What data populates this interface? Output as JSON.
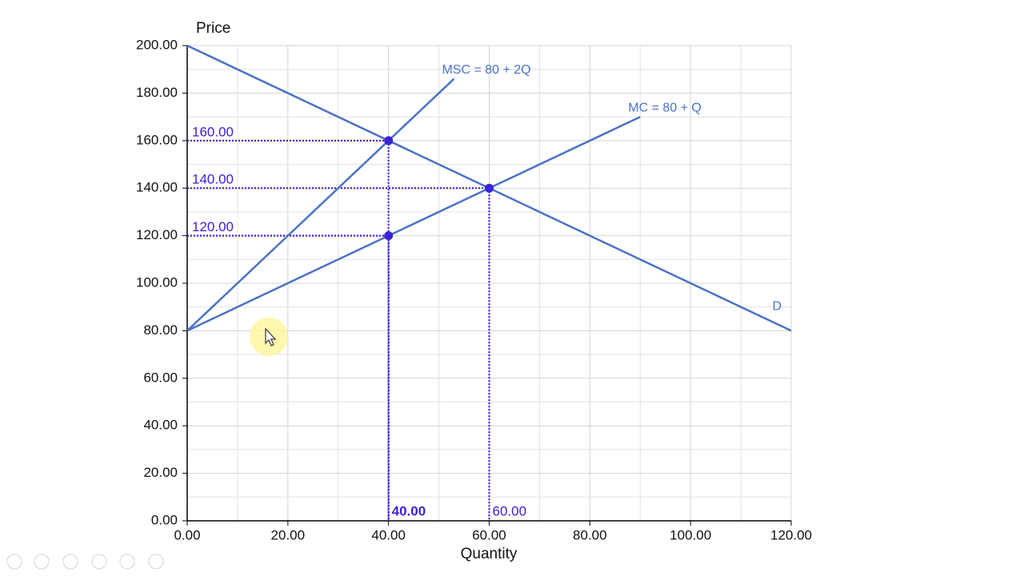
{
  "chart_data": {
    "type": "line",
    "y_label": "Price",
    "x_label": "Quantity",
    "xlim": [
      0,
      120
    ],
    "ylim": [
      0,
      200
    ],
    "xticks": [
      {
        "value": 0,
        "label": "0.00"
      },
      {
        "value": 20,
        "label": "20.00"
      },
      {
        "value": 40,
        "label": "40.00"
      },
      {
        "value": 60,
        "label": "60.00"
      },
      {
        "value": 80,
        "label": "80.00"
      },
      {
        "value": 100,
        "label": "100.00"
      },
      {
        "value": 120,
        "label": "120.00"
      }
    ],
    "yticks": [
      {
        "value": 0,
        "label": "0.00"
      },
      {
        "value": 20,
        "label": "20.00"
      },
      {
        "value": 40,
        "label": "40.00"
      },
      {
        "value": 60,
        "label": "60.00"
      },
      {
        "value": 80,
        "label": "80.00"
      },
      {
        "value": 100,
        "label": "100.00"
      },
      {
        "value": 120,
        "label": "120.00"
      },
      {
        "value": 140,
        "label": "140.00"
      },
      {
        "value": 160,
        "label": "160.00"
      },
      {
        "value": 180,
        "label": "180.00"
      },
      {
        "value": 200,
        "label": "200.00"
      }
    ],
    "grid": true,
    "series": [
      {
        "name": "D",
        "color": "#4a72c8",
        "x": [
          0,
          120
        ],
        "values": [
          200,
          80
        ]
      },
      {
        "name": "MSC = 80 + 2Q",
        "color": "#4a72c8",
        "x": [
          0,
          53
        ],
        "values": [
          80,
          186
        ]
      },
      {
        "name": "MC = 80 + Q",
        "color": "#4a72c8",
        "x": [
          0,
          90
        ],
        "values": [
          80,
          170
        ]
      }
    ],
    "guide_color": "#3b22d6",
    "points": [
      {
        "x": 40,
        "y": 160,
        "x_label": "40.00",
        "y_label": "160.00"
      },
      {
        "x": 60,
        "y": 140,
        "x_label": "60.00",
        "y_label": "140.00"
      },
      {
        "x": 40,
        "y": 120,
        "y_label": "120.00"
      }
    ]
  }
}
